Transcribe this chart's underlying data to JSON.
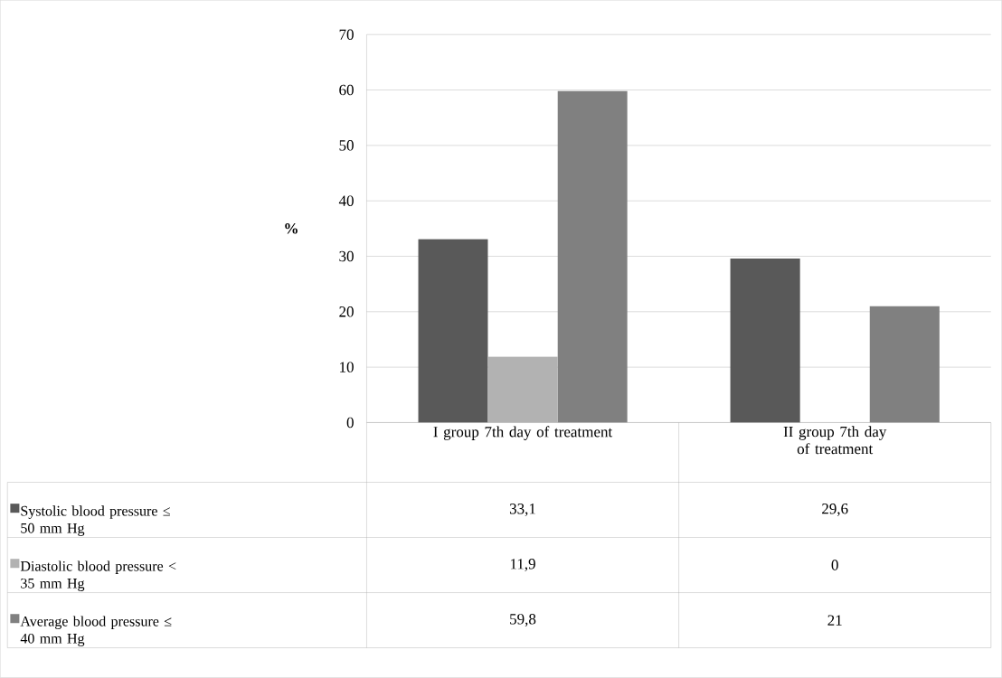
{
  "chart_data": {
    "type": "bar",
    "ylabel": "%",
    "categories": [
      "I group 7th day of treatment",
      "II group 7th day of treatment"
    ],
    "series": [
      {
        "name": "Systolic blood pressure ≤ 50 mm Hg",
        "color": "#595959",
        "values": [
          33.1,
          29.6
        ],
        "value_labels": [
          "33,1",
          "29,6"
        ]
      },
      {
        "name": "Diastolic blood pressure < 35 mm Hg",
        "color": "#b2b2b2",
        "values": [
          11.9,
          0
        ],
        "value_labels": [
          "11,9",
          "0"
        ]
      },
      {
        "name": "Average blood pressure ≤ 40 mm Hg",
        "color": "#808080",
        "values": [
          59.8,
          21
        ],
        "value_labels": [
          "59,8",
          "21"
        ]
      }
    ],
    "ylim": [
      0,
      70
    ],
    "yticks": [
      0,
      10,
      20,
      30,
      40,
      50,
      60,
      70
    ],
    "grid": "y",
    "legend": "bottom"
  }
}
